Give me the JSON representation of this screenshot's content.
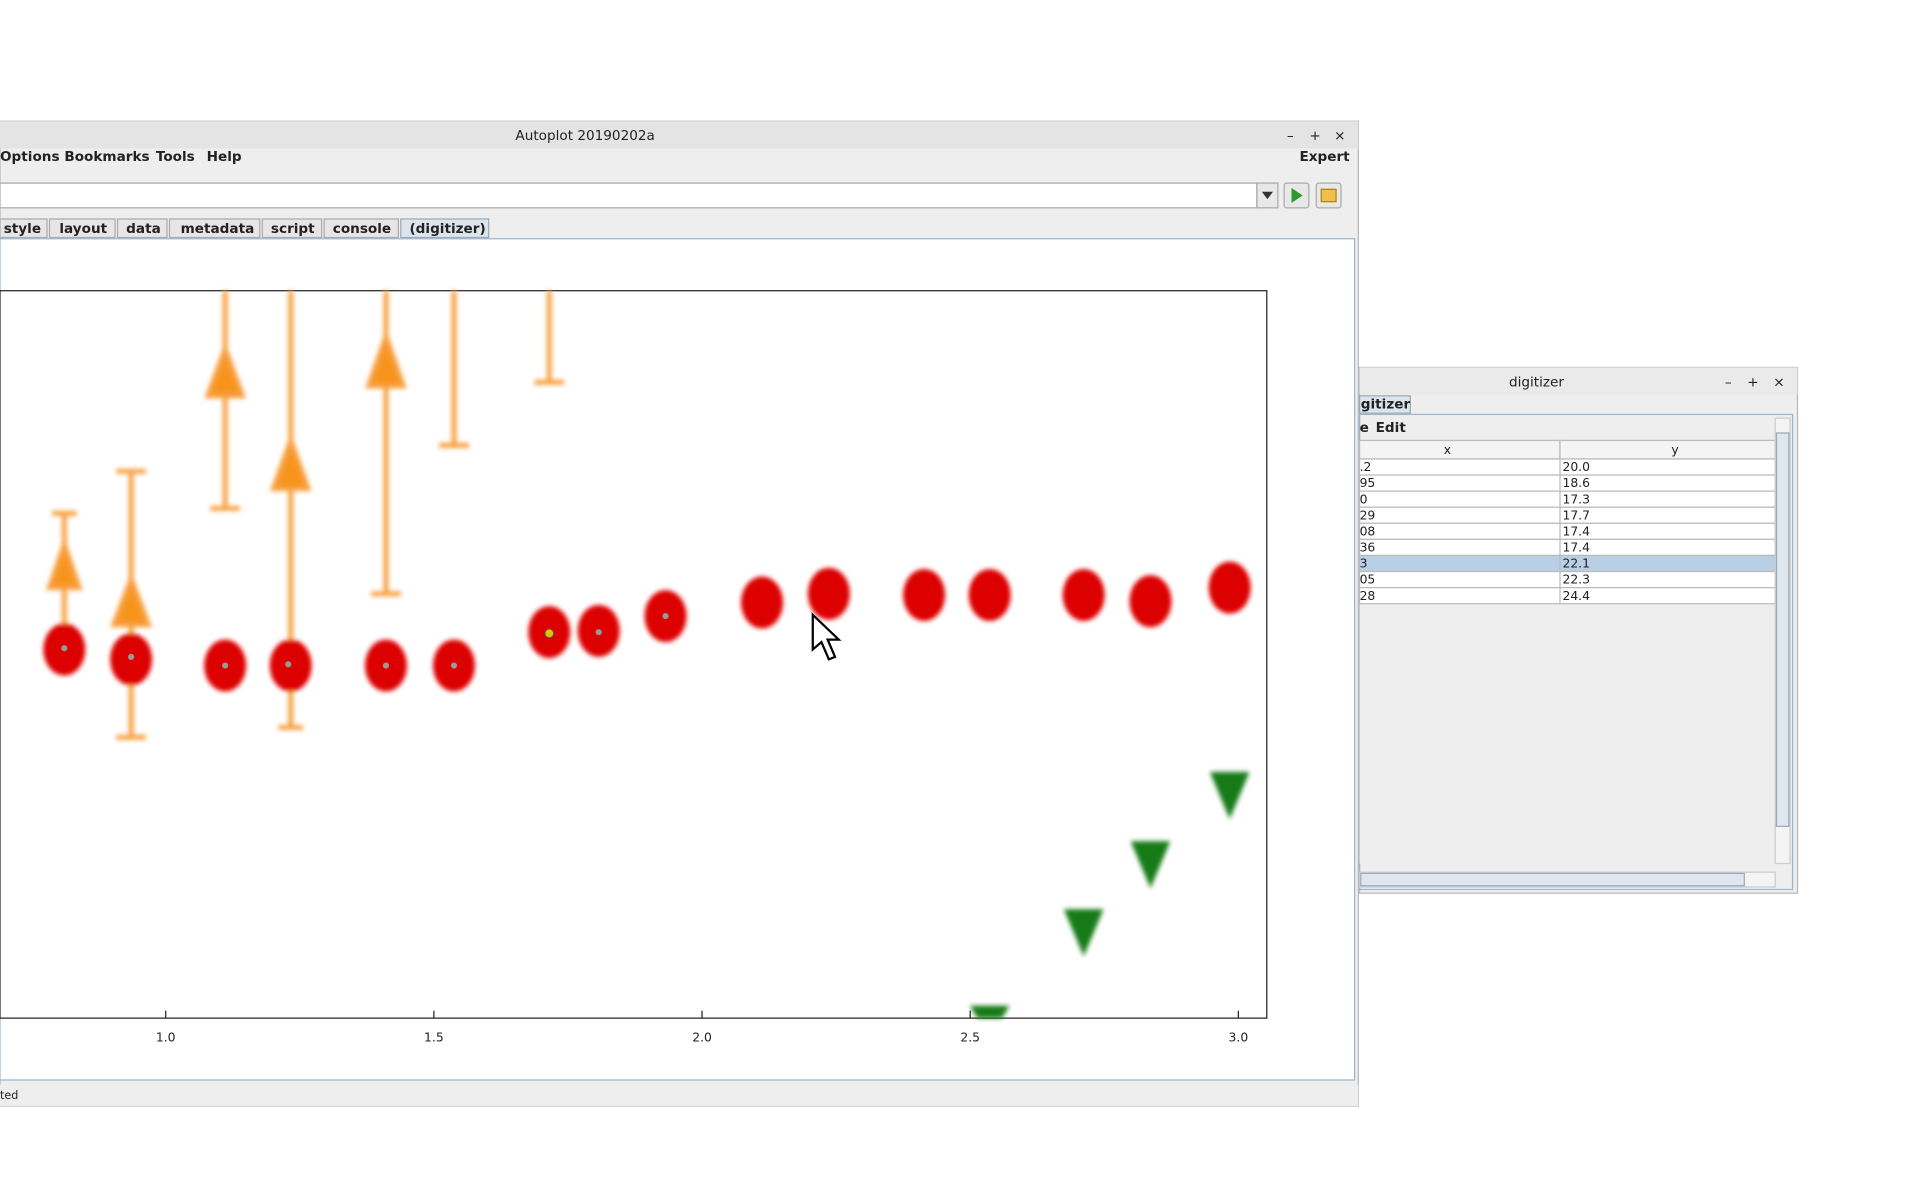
{
  "window": {
    "title": "Autoplot 20190202a",
    "menu": [
      "Options",
      "Bookmarks",
      "Tools",
      "Help"
    ],
    "expert": "Expert",
    "tabs": [
      "style",
      "layout",
      "data",
      "metadata",
      "script",
      "console",
      "(digitizer)"
    ],
    "status": "ted"
  },
  "plot": {
    "xlim": [
      0.691,
      3.053
    ],
    "xticks": [
      {
        "value": 1,
        "label": "1.0"
      },
      {
        "value": 1.5,
        "label": "1.5"
      },
      {
        "value": 2,
        "label": "2.0"
      },
      {
        "value": 2.5,
        "label": "2.5"
      },
      {
        "value": 3,
        "label": "3.0"
      }
    ]
  },
  "digitizer": {
    "title": "digitizer",
    "tab": "gitizer",
    "menu": [
      "e",
      "Edit"
    ],
    "columns": [
      "x",
      "y"
    ],
    "rows": [
      [
        ".2",
        "20.0"
      ],
      [
        "95",
        "18.6"
      ],
      [
        "0",
        "17.3"
      ],
      [
        "29",
        "17.7"
      ],
      [
        "08",
        "17.4"
      ],
      [
        "36",
        "17.4"
      ],
      [
        "3",
        "22.1"
      ],
      [
        "05",
        "22.3"
      ],
      [
        "28",
        "24.4"
      ]
    ],
    "selected_row": 6
  }
}
